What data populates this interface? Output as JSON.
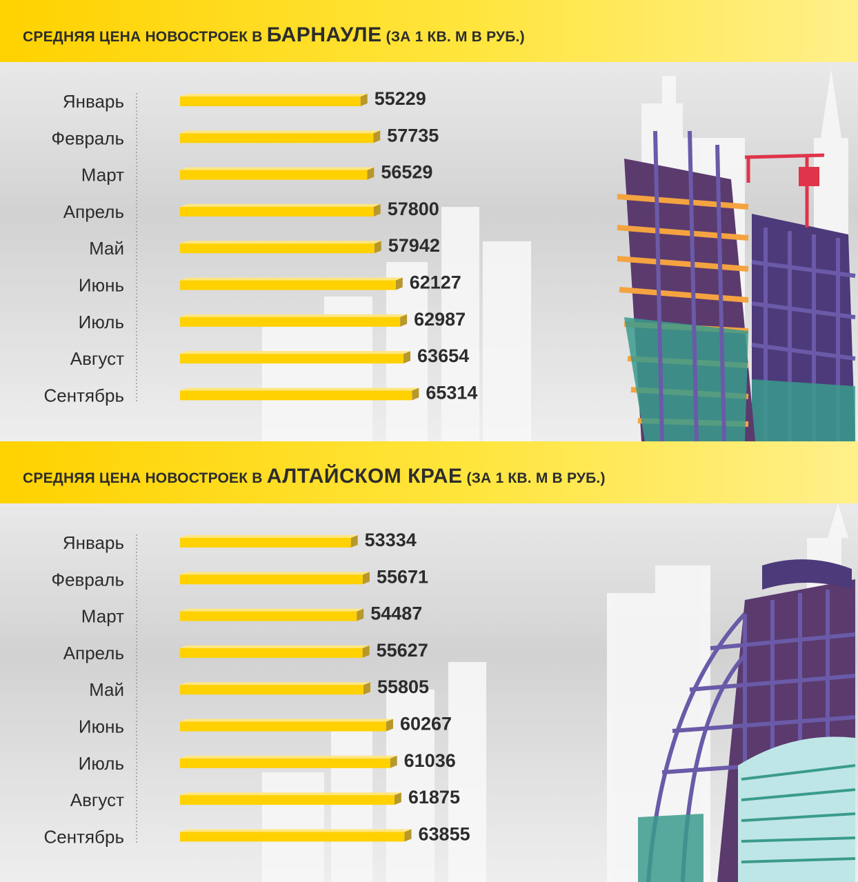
{
  "panels": [
    {
      "title_prefix": "СРЕДНЯЯ ЦЕНА НОВОСТРОЕК В ",
      "title_accent": "БАРНАУЛЕ",
      "title_suffix": " (ЗА 1 КВ. М В РУБ.)"
    },
    {
      "title_prefix": "СРЕДНЯЯ ЦЕНА НОВОСТРОЕК В ",
      "title_accent": "АЛТАЙСКОМ КРАЕ",
      "title_suffix": " (ЗА 1 КВ. М В РУБ.)"
    }
  ],
  "colors": {
    "header": "#ffd400",
    "bar": "#ffd100",
    "bar_side": "#b8982a",
    "text": "#2c2c2c",
    "building_purple": "#5b3a6e",
    "building_orange": "#f4a340",
    "building_glass": "#3a9b8c"
  },
  "chart_data": [
    {
      "type": "bar",
      "orientation": "horizontal",
      "title": "СРЕДНЯЯ ЦЕНА НОВОСТРОЕК В БАРНАУЛЕ (ЗА 1 КВ. М В РУБ.)",
      "categories": [
        "Январь",
        "Февраль",
        "Март",
        "Апрель",
        "Май",
        "Июнь",
        "Июль",
        "Август",
        "Сентябрь"
      ],
      "values": [
        55229,
        57735,
        56529,
        57800,
        57942,
        62127,
        62987,
        63654,
        65314
      ],
      "value_labels": [
        "55229",
        "57735",
        "56529",
        "57800",
        "57942",
        "62127",
        "62987",
        "63654",
        "65314"
      ],
      "grid": false,
      "legend": "none"
    },
    {
      "type": "bar",
      "orientation": "horizontal",
      "title": "СРЕДНЯЯ ЦЕНА НОВОСТРОЕК В АЛТАЙСКОМ КРАЕ (ЗА 1 КВ. М В РУБ.)",
      "categories": [
        "Январь",
        "Февраль",
        "Март",
        "Апрель",
        "Май",
        "Июнь",
        "Июль",
        "Август",
        "Сентябрь"
      ],
      "values": [
        53334,
        55671,
        54487,
        55627,
        55805,
        60267,
        61036,
        61875,
        63855
      ],
      "value_labels": [
        "53334",
        "55671",
        "54487",
        "55627",
        "55805",
        "60267",
        "61036",
        "61875",
        "63855"
      ],
      "grid": false,
      "legend": "none"
    }
  ]
}
